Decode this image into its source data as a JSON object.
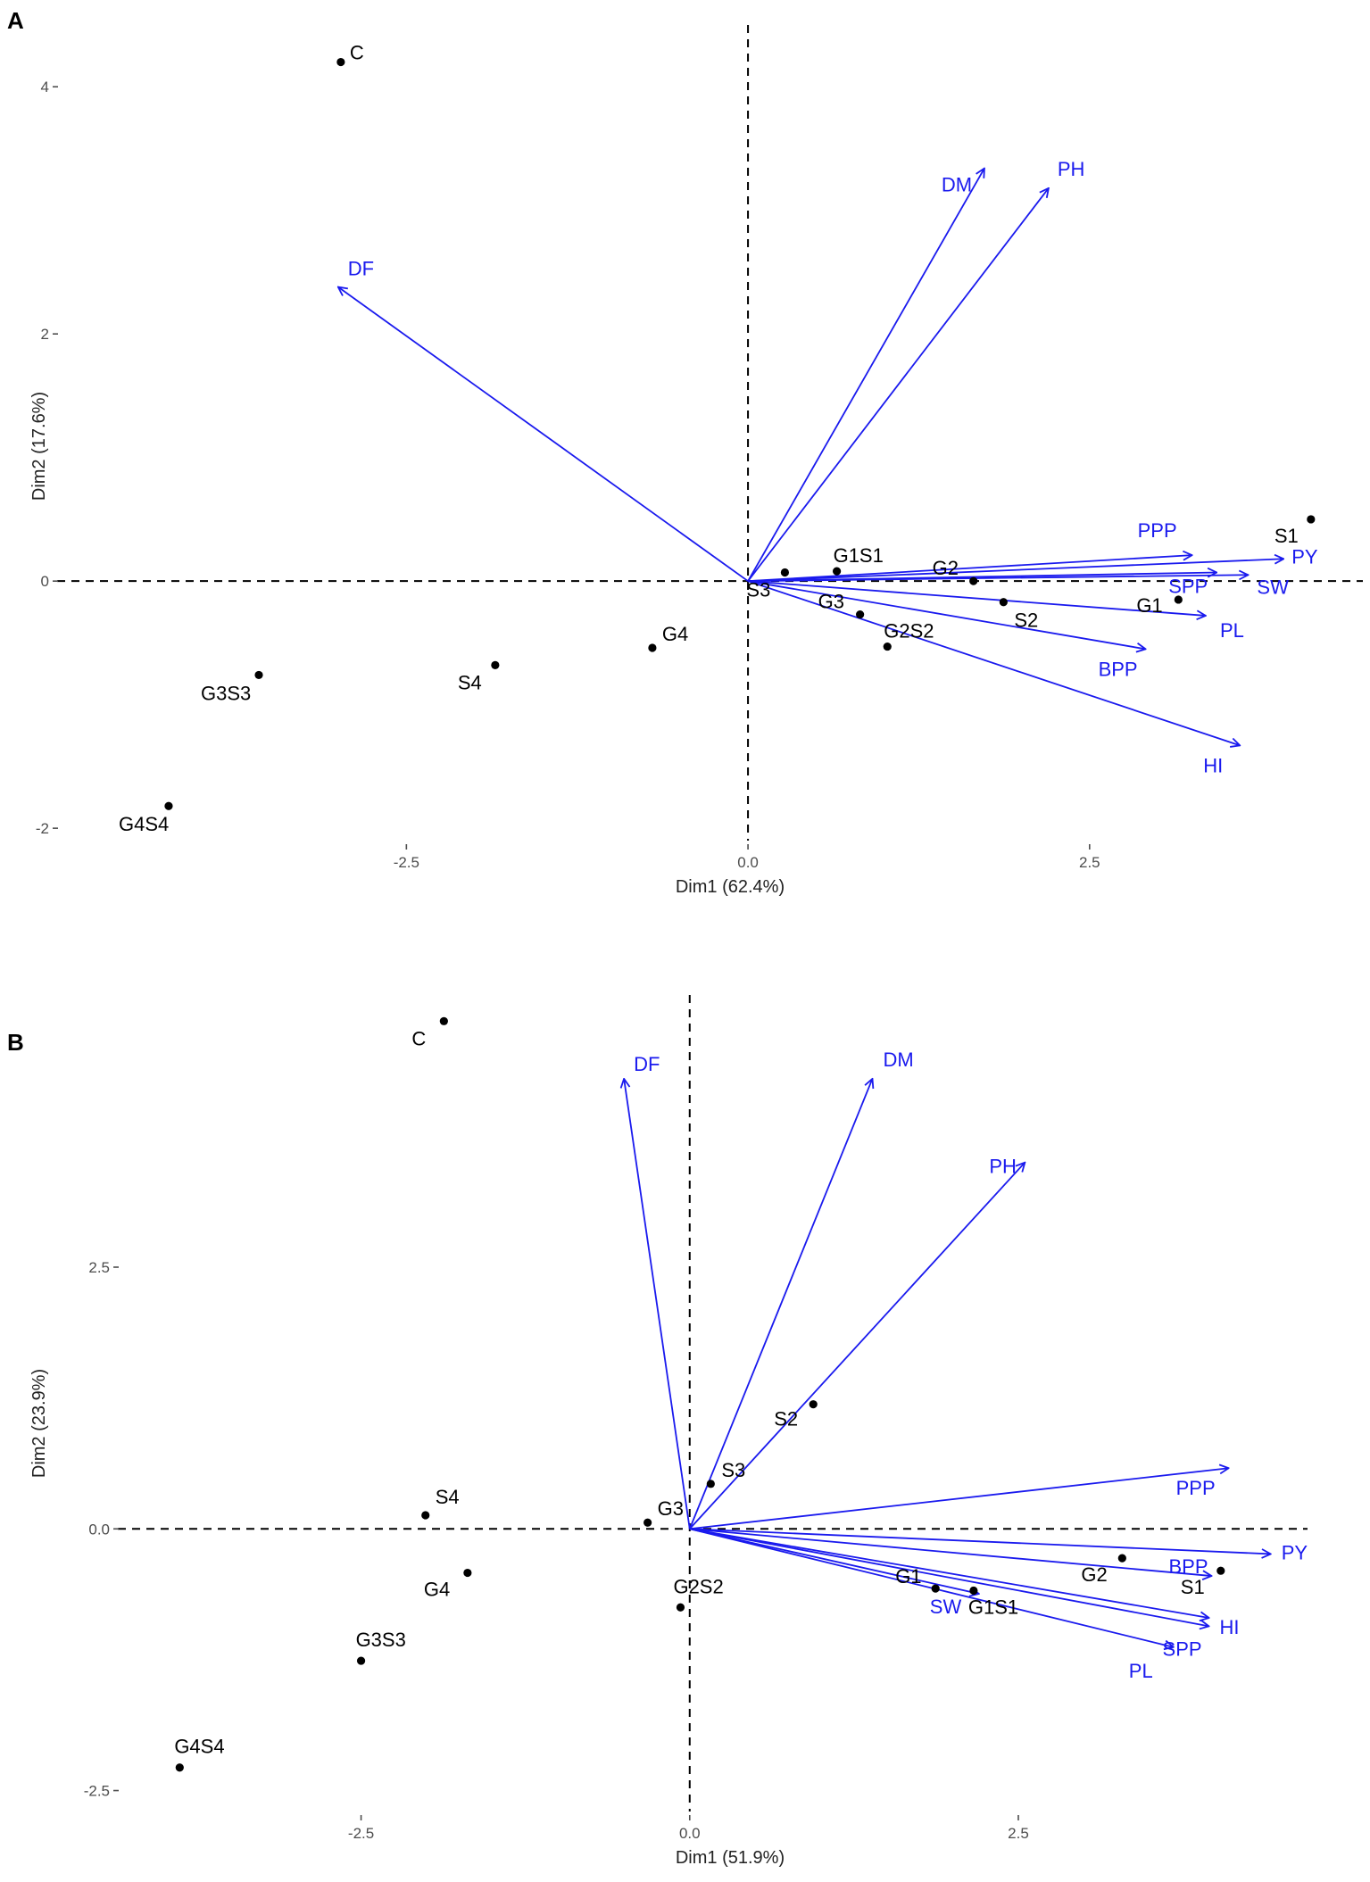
{
  "colors": {
    "vector": "#1a1aee",
    "point": "#000000",
    "tick": "#4d4d4d"
  },
  "chart_data": [
    {
      "type": "scatter",
      "subtype": "pca-biplot",
      "panel_label": "A",
      "xlabel": "Dim1 (62.4%)",
      "ylabel": "Dim2 (17.6%)",
      "xlim": [
        -5.2,
        4.5
      ],
      "ylim": [
        -2.1,
        4.5
      ],
      "x_ticks": [
        -2.5,
        0.0,
        2.5
      ],
      "x_tick_labels": [
        "-2.5",
        "0.0",
        "2.5"
      ],
      "y_ticks": [
        -2,
        0,
        2,
        4
      ],
      "y_tick_labels": [
        "-2",
        "0",
        "2",
        "4"
      ],
      "reference_lines": {
        "x": 0,
        "y": 0,
        "style": "dashed"
      },
      "observations": [
        {
          "label": "C",
          "x": -2.98,
          "y": 4.2
        },
        {
          "label": "S1",
          "x": 4.12,
          "y": 0.5
        },
        {
          "label": "G1S1",
          "x": 0.65,
          "y": 0.08
        },
        {
          "label": "G2",
          "x": 1.65,
          "y": 0.0
        },
        {
          "label": "S3",
          "x": 0.27,
          "y": 0.07
        },
        {
          "label": "G3",
          "x": 0.82,
          "y": -0.27
        },
        {
          "label": "S2",
          "x": 1.87,
          "y": -0.17
        },
        {
          "label": "G1",
          "x": 3.15,
          "y": -0.15
        },
        {
          "label": "G2S2",
          "x": 1.02,
          "y": -0.53
        },
        {
          "label": "G4",
          "x": -0.7,
          "y": -0.54
        },
        {
          "label": "S4",
          "x": -1.85,
          "y": -0.68
        },
        {
          "label": "G3S3",
          "x": -3.58,
          "y": -0.76
        },
        {
          "label": "G4S4",
          "x": -4.24,
          "y": -1.82
        }
      ],
      "variables": [
        {
          "label": "DM",
          "x": 1.73,
          "y": 3.34
        },
        {
          "label": "PH",
          "x": 2.2,
          "y": 3.18
        },
        {
          "label": "DF",
          "x": -3.0,
          "y": 2.38
        },
        {
          "label": "PPP",
          "x": 3.25,
          "y": 0.21
        },
        {
          "label": "PY",
          "x": 3.92,
          "y": 0.18
        },
        {
          "label": "SPP",
          "x": 3.43,
          "y": 0.07
        },
        {
          "label": "SW",
          "x": 3.66,
          "y": 0.05
        },
        {
          "label": "PL",
          "x": 3.35,
          "y": -0.28
        },
        {
          "label": "BPP",
          "x": 2.91,
          "y": -0.55
        },
        {
          "label": "HI",
          "x": 3.6,
          "y": -1.33
        }
      ]
    },
    {
      "type": "scatter",
      "subtype": "pca-biplot",
      "panel_label": "B",
      "xlabel": "Dim1 (51.9%)",
      "ylabel": "Dim2 (23.9%)",
      "xlim": [
        -4.5,
        4.7
      ],
      "ylim": [
        -2.7,
        5.1
      ],
      "x_ticks": [
        -2.5,
        0.0,
        2.5
      ],
      "x_tick_labels": [
        "-2.5",
        "0.0",
        "2.5"
      ],
      "y_ticks": [
        -2.5,
        0.0,
        2.5
      ],
      "y_tick_labels": [
        "-2.5",
        "0.0",
        "2.5"
      ],
      "reference_lines": {
        "x": 0,
        "y": 0,
        "style": "dashed"
      },
      "observations": [
        {
          "label": "C",
          "x": -1.87,
          "y": 4.85
        },
        {
          "label": "S2",
          "x": 0.94,
          "y": 1.19
        },
        {
          "label": "S3",
          "x": 0.16,
          "y": 0.43
        },
        {
          "label": "G3",
          "x": -0.32,
          "y": 0.06
        },
        {
          "label": "S4",
          "x": -2.01,
          "y": 0.13
        },
        {
          "label": "G4",
          "x": -1.69,
          "y": -0.42
        },
        {
          "label": "G2S2",
          "x": -0.07,
          "y": -0.75
        },
        {
          "label": "G3S3",
          "x": -2.5,
          "y": -1.26
        },
        {
          "label": "G4S4",
          "x": -3.88,
          "y": -2.28
        },
        {
          "label": "G1",
          "x": 1.87,
          "y": -0.57
        },
        {
          "label": "G1S1",
          "x": 2.16,
          "y": -0.59
        },
        {
          "label": "G2",
          "x": 3.29,
          "y": -0.28
        },
        {
          "label": "S1",
          "x": 4.04,
          "y": -0.4
        }
      ],
      "variables": [
        {
          "label": "DF",
          "x": -0.5,
          "y": 4.3
        },
        {
          "label": "DM",
          "x": 1.39,
          "y": 4.3
        },
        {
          "label": "PH",
          "x": 2.55,
          "y": 3.5
        },
        {
          "label": "PPP",
          "x": 4.1,
          "y": 0.58
        },
        {
          "label": "PY",
          "x": 4.42,
          "y": -0.24
        },
        {
          "label": "BPP",
          "x": 3.97,
          "y": -0.45
        },
        {
          "label": "HI",
          "x": 3.95,
          "y": -0.85
        },
        {
          "label": "SPP",
          "x": 3.95,
          "y": -0.93
        },
        {
          "label": "PL",
          "x": 3.68,
          "y": -1.13
        },
        {
          "label": "SW",
          "x": 2.2,
          "y": -0.62
        }
      ]
    }
  ]
}
